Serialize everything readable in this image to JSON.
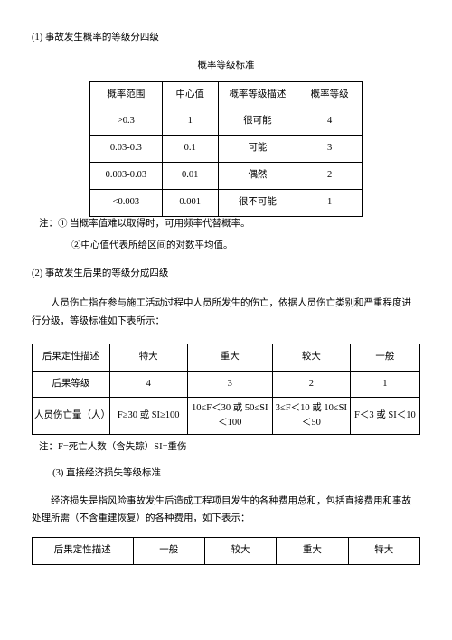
{
  "s1": {
    "heading": "(1) 事故发生概率的等级分四级",
    "table_title": "概率等级标准",
    "headers": [
      "概率范围",
      "中心值",
      "概率等级描述",
      "概率等级"
    ],
    "rows": [
      [
        ">0.3",
        "1",
        "很可能",
        "4"
      ],
      [
        "0.03-0.3",
        "0.1",
        "可能",
        "3"
      ],
      [
        "0.003-0.03",
        "0.01",
        "偶然",
        "2"
      ],
      [
        "<0.003",
        "0.001",
        "很不可能",
        "1"
      ]
    ],
    "note1": "注：① 当概率值难以取得时，可用频率代替概率。",
    "note2": "②中心值代表所给区间的对数平均值。"
  },
  "s2": {
    "heading": "(2) 事故发生后果的等级分成四级",
    "para": "人员伤亡指在参与施工活动过程中人员所发生的伤亡，依据人员伤亡类别和严重程度进行分级，等级标准如下表所示：",
    "headers": [
      "后果定性描述",
      "特大",
      "重大",
      "较大",
      "一般"
    ],
    "row_grade": [
      "后果等级",
      "4",
      "3",
      "2",
      "1"
    ],
    "row_casualty_label": "人员伤亡量（人）",
    "row_casualty": [
      "F≥30 或 SI≥100",
      "10≤F＜30 或 50≤SI＜100",
      "3≤F＜10 或 10≤SI＜50",
      "F＜3 或 SI＜10"
    ],
    "after_note": "注：F=死亡人数（含失踪）SI=重伤"
  },
  "s3": {
    "heading": "(3) 直接经济损失等级标准",
    "para": "经济损失是指风险事故发生后造成工程项目发生的各种费用总和，包括直接费用和事故处理所需（不含重建恢复）的各种费用，如下表示：",
    "headers": [
      "后果定性描述",
      "一般",
      "较大",
      "重大",
      "特大"
    ]
  }
}
